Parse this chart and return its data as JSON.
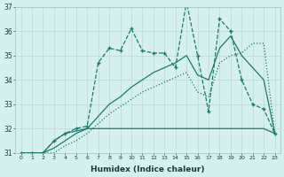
{
  "xlabel": "Humidex (Indice chaleur)",
  "x_values": [
    0,
    1,
    2,
    3,
    4,
    5,
    6,
    7,
    8,
    9,
    10,
    11,
    12,
    13,
    14,
    15,
    16,
    17,
    18,
    19,
    20,
    21,
    22,
    23
  ],
  "series_jagged": [
    31.0,
    31.0,
    31.0,
    31.5,
    31.8,
    32.0,
    32.1,
    34.7,
    35.3,
    35.2,
    36.1,
    35.2,
    35.1,
    35.1,
    34.5,
    37.2,
    35.0,
    32.7,
    36.5,
    36.0,
    34.0,
    33.0,
    32.8,
    31.8
  ],
  "series_flat": [
    31.0,
    31.0,
    31.0,
    31.5,
    31.8,
    31.9,
    32.0,
    32.0,
    32.0,
    32.0,
    32.0,
    32.0,
    32.0,
    32.0,
    32.0,
    32.0,
    32.0,
    32.0,
    32.0,
    32.0,
    32.0,
    32.0,
    32.0,
    31.8
  ],
  "series_rise1": [
    31.0,
    31.0,
    31.0,
    31.0,
    31.3,
    31.5,
    31.8,
    32.2,
    32.6,
    32.9,
    33.2,
    33.5,
    33.7,
    33.9,
    34.1,
    34.3,
    33.5,
    33.3,
    34.7,
    35.0,
    35.1,
    35.5,
    35.5,
    31.8
  ],
  "series_rise2": [
    31.0,
    31.0,
    31.0,
    31.2,
    31.5,
    31.8,
    32.0,
    32.5,
    33.0,
    33.3,
    33.7,
    34.0,
    34.3,
    34.5,
    34.7,
    35.0,
    34.2,
    34.0,
    35.3,
    35.8,
    35.0,
    34.5,
    34.0,
    31.8
  ],
  "line_color": "#1a7a6e",
  "bg_color": "#d6f0ee",
  "grid_color": "#b8d8d5",
  "ylim": [
    31,
    37
  ],
  "yticks": [
    31,
    32,
    33,
    34,
    35,
    36,
    37
  ],
  "xlim": [
    -0.5,
    23.5
  ]
}
